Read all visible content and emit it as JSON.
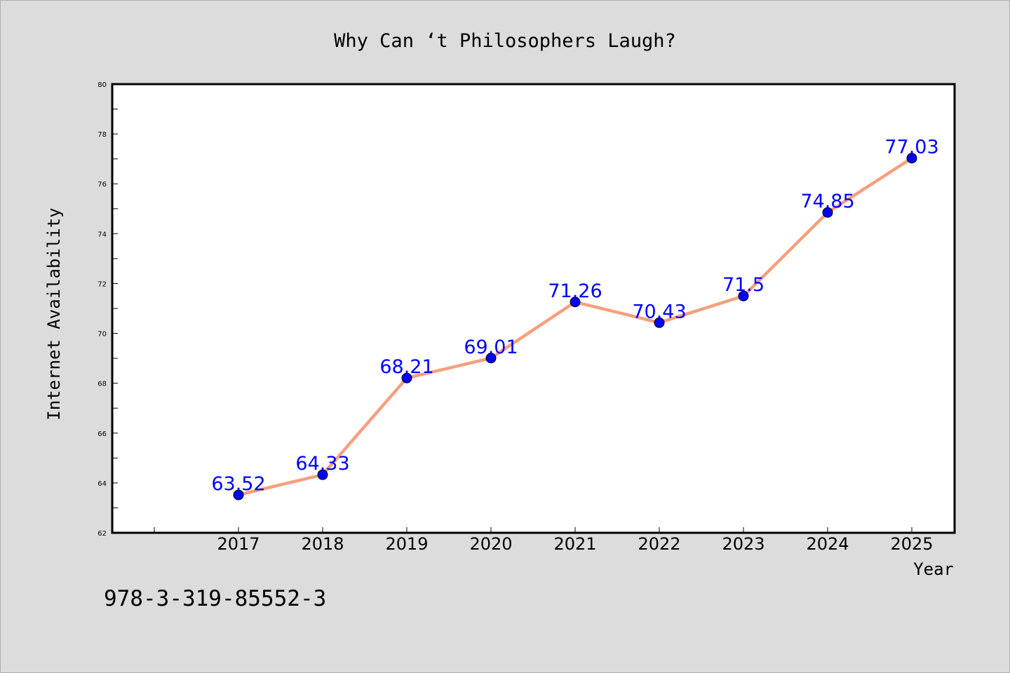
{
  "chart_data": {
    "type": "line",
    "title": "Why Can ‘t Philosophers Laugh?",
    "xlabel": "Year",
    "ylabel": "Internet Availability",
    "categories": [
      "2017",
      "2018",
      "2019",
      "2020",
      "2021",
      "2022",
      "2023",
      "2024",
      "2025"
    ],
    "values": [
      63.52,
      64.33,
      68.21,
      69.01,
      71.26,
      70.43,
      71.5,
      74.85,
      77.03
    ],
    "data_labels": [
      "63.52",
      "64.33",
      "68.21",
      "69.01",
      "71.26",
      "70.43",
      "71.5",
      "74.85",
      "77.03"
    ],
    "ylim": [
      62,
      80
    ],
    "yticks": [
      "62",
      "64",
      "66",
      "68",
      "70",
      "72",
      "74",
      "76",
      "78",
      "80"
    ],
    "grid": false,
    "legend": "none",
    "line_color": "#f4a07f",
    "marker_color": "#0000ff",
    "label_color": "#0000ff"
  },
  "footer_code": "978-3-319-85552-3"
}
